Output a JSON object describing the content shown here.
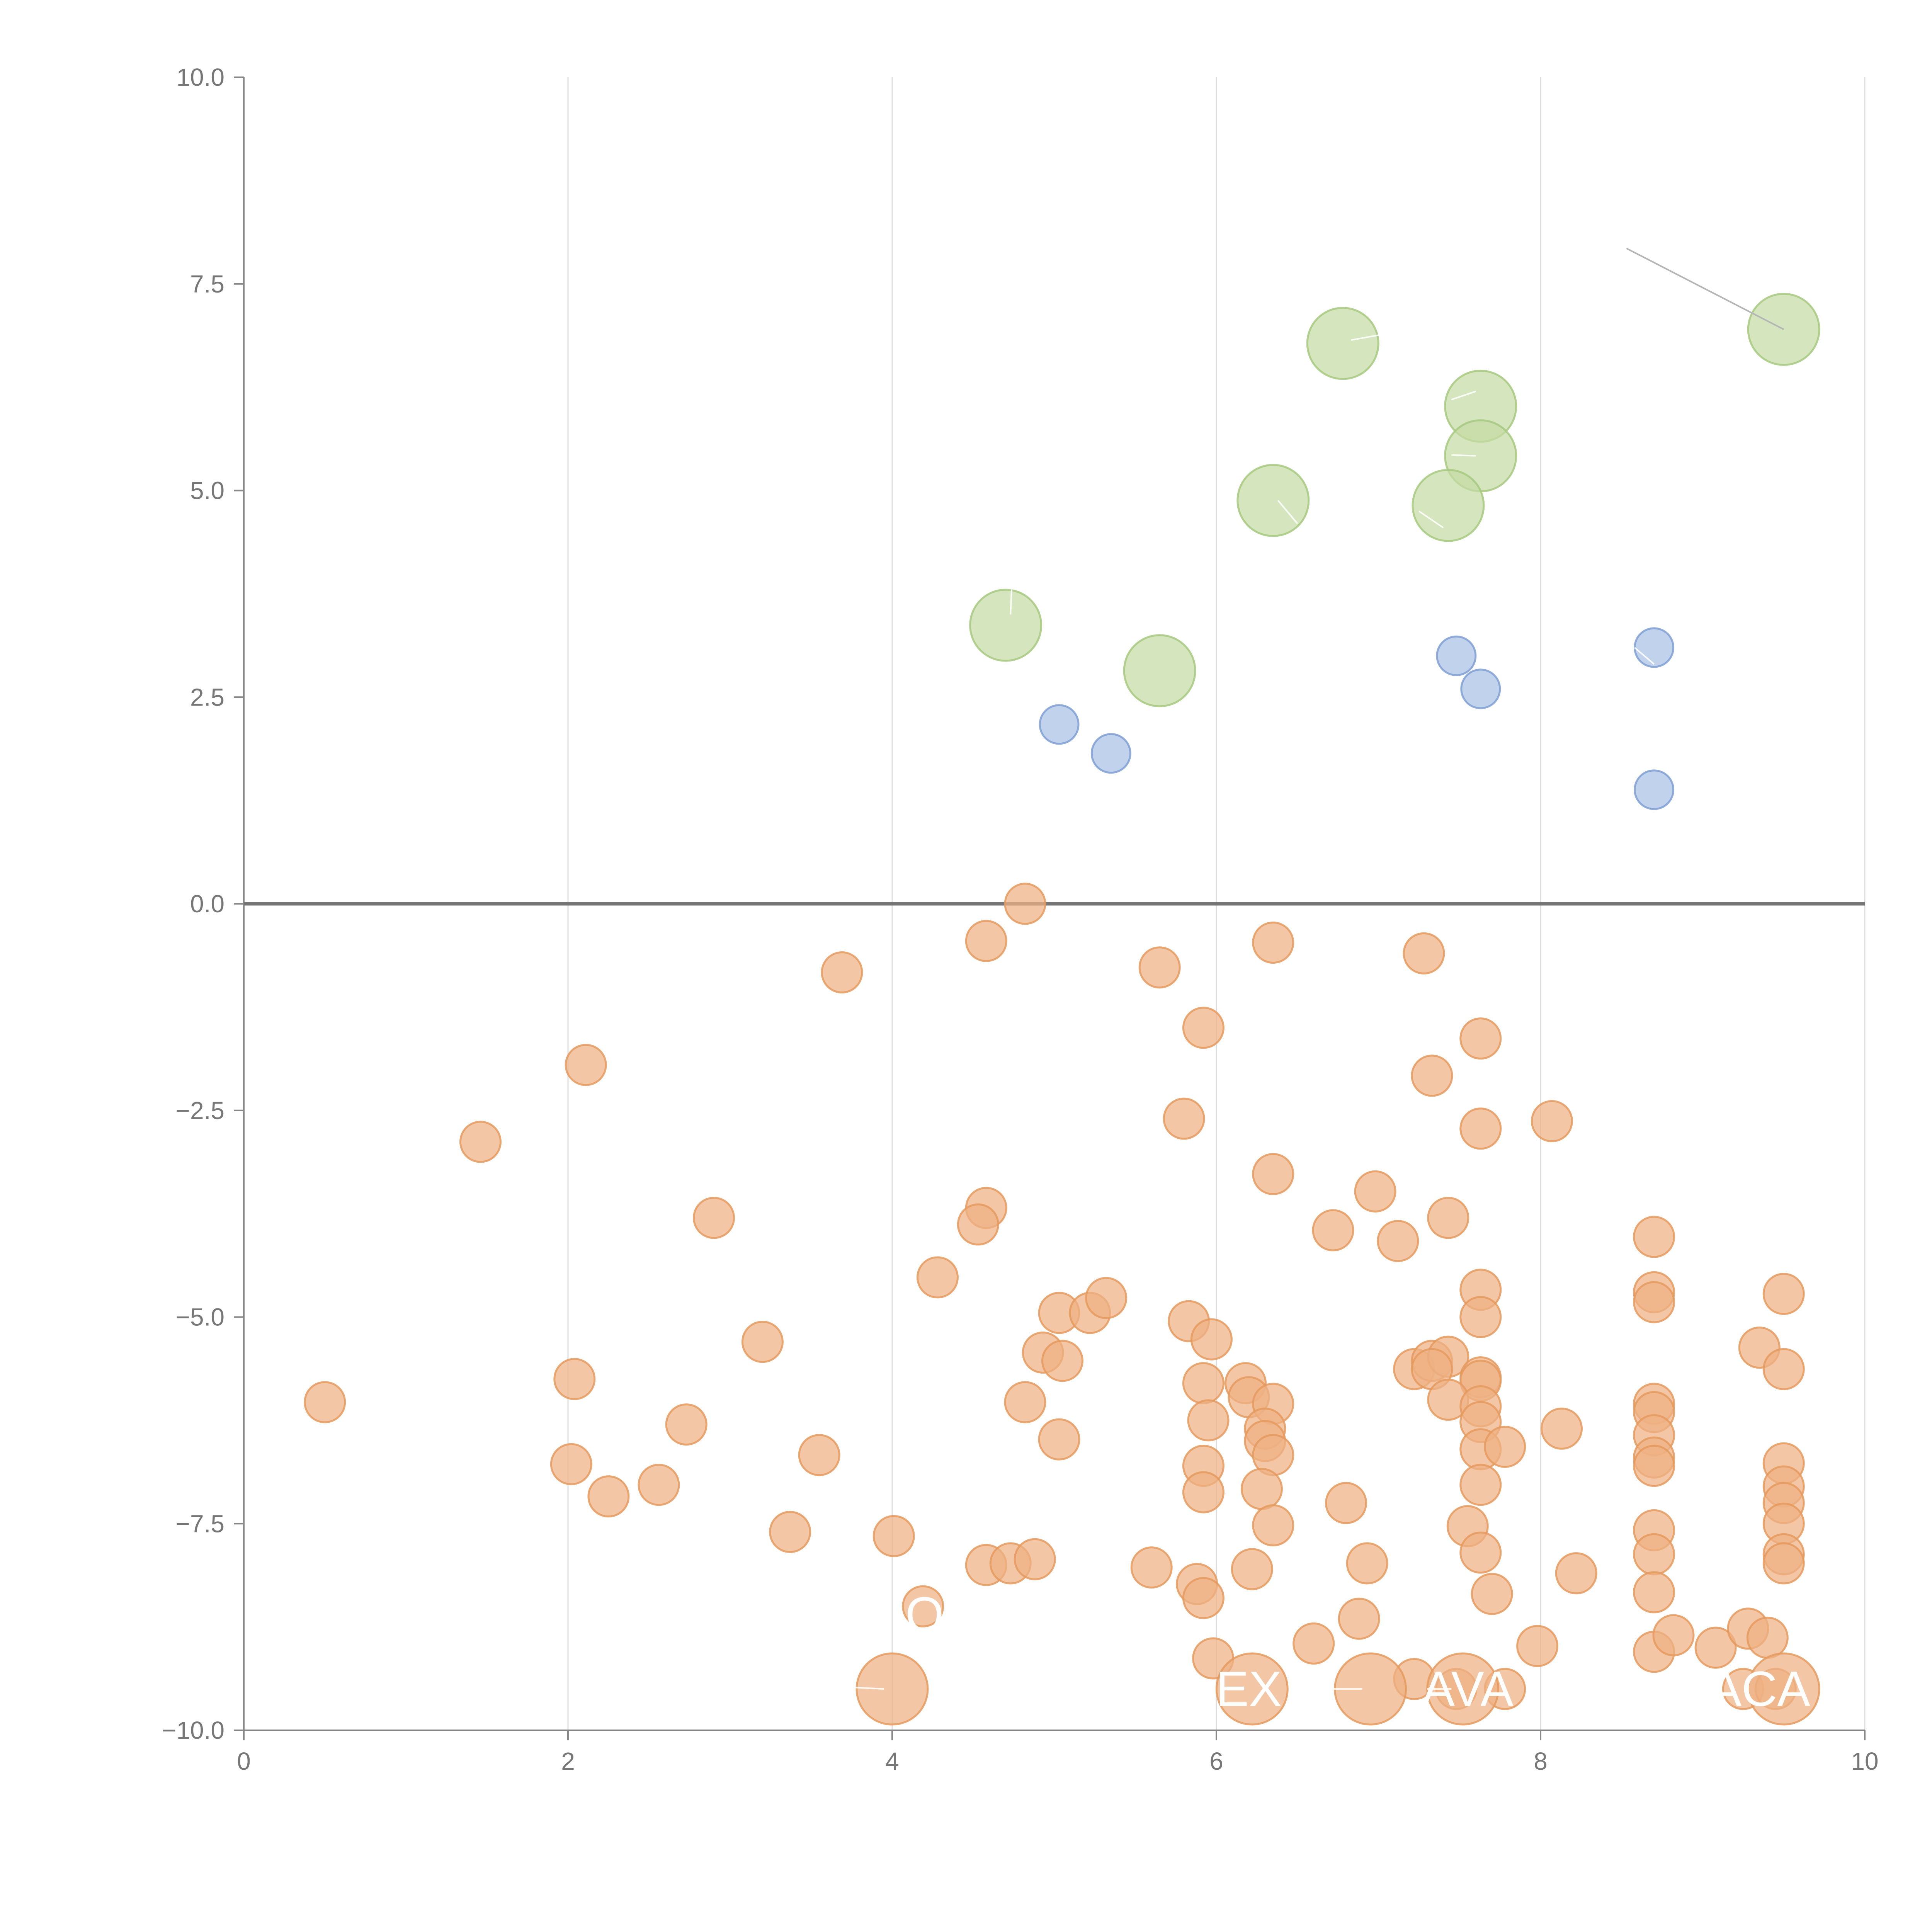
{
  "chart_data": {
    "type": "scatter",
    "title": "",
    "xlabel": "",
    "ylabel": "",
    "xlim": [
      0,
      10
    ],
    "ylim": [
      -10,
      10
    ],
    "x_ticks": [
      {
        "value": 0,
        "label": "0"
      },
      {
        "value": 2,
        "label": "2"
      },
      {
        "value": 4,
        "label": "4"
      },
      {
        "value": 6,
        "label": "6"
      },
      {
        "value": 8,
        "label": "8"
      },
      {
        "value": 10,
        "label": "10"
      }
    ],
    "y_ticks": [
      {
        "value": 10,
        "label": "10.0"
      },
      {
        "value": 7.5,
        "label": "7.5"
      },
      {
        "value": 5,
        "label": "5.0"
      },
      {
        "value": 2.5,
        "label": "2.5"
      },
      {
        "value": 0,
        "label": "0.0"
      },
      {
        "value": -2.5,
        "label": "−2.5"
      },
      {
        "value": -5,
        "label": "−5.0"
      },
      {
        "value": -7.5,
        "label": "−7.5"
      },
      {
        "value": -10,
        "label": "−10.0"
      }
    ],
    "grid": "vertical",
    "reference_line_y": 0,
    "colors": {
      "green_fill": "#c5dba4",
      "green_stroke": "#a6c97f",
      "blue_fill": "#a9c0e4",
      "blue_stroke": "#7f9fd2",
      "orange_fill": "#eeb283",
      "orange_stroke": "#e49a5e",
      "leader_gray": "#b5b5b5",
      "leader_light": "#ffffff"
    },
    "series": [
      {
        "name": "large-green",
        "color": "green",
        "size": "large",
        "points": [
          [
            6.78,
            6.78
          ],
          [
            7.63,
            6.02
          ],
          [
            7.63,
            5.42
          ],
          [
            6.35,
            4.88
          ],
          [
            7.43,
            4.82
          ],
          [
            4.7,
            3.37
          ],
          [
            5.65,
            2.82
          ],
          [
            9.5,
            6.95
          ]
        ]
      },
      {
        "name": "medium-blue",
        "color": "blue",
        "size": "small",
        "points": [
          [
            5.03,
            2.17
          ],
          [
            5.35,
            1.82
          ],
          [
            7.48,
            3.0
          ],
          [
            7.63,
            2.6
          ],
          [
            8.7,
            3.1
          ],
          [
            8.7,
            1.38
          ]
        ]
      },
      {
        "name": "small-orange",
        "color": "orange",
        "size": "medium",
        "points": [
          [
            4.82,
            0.0
          ],
          [
            4.58,
            -0.45
          ],
          [
            3.69,
            -0.83
          ],
          [
            5.65,
            -0.77
          ],
          [
            6.35,
            -0.47
          ],
          [
            7.28,
            -0.6
          ],
          [
            5.92,
            -1.5
          ],
          [
            7.63,
            -1.63
          ],
          [
            2.11,
            -1.95
          ],
          [
            1.46,
            -2.88
          ],
          [
            5.8,
            -2.6
          ],
          [
            7.33,
            -2.08
          ],
          [
            7.63,
            -2.72
          ],
          [
            8.07,
            -2.63
          ],
          [
            6.35,
            -3.27
          ],
          [
            6.98,
            -3.48
          ],
          [
            2.9,
            -3.8
          ],
          [
            4.58,
            -3.68
          ],
          [
            4.53,
            -3.88
          ],
          [
            6.72,
            -3.95
          ],
          [
            7.12,
            -4.08
          ],
          [
            7.43,
            -3.8
          ],
          [
            8.7,
            -4.03
          ],
          [
            4.28,
            -4.52
          ],
          [
            5.03,
            -4.95
          ],
          [
            5.22,
            -4.95
          ],
          [
            5.32,
            -4.77
          ],
          [
            5.83,
            -5.05
          ],
          [
            5.97,
            -5.27
          ],
          [
            7.63,
            -4.67
          ],
          [
            7.63,
            -5.0
          ],
          [
            8.7,
            -4.7
          ],
          [
            8.7,
            -4.82
          ],
          [
            9.5,
            -4.72
          ],
          [
            3.2,
            -5.3
          ],
          [
            4.93,
            -5.43
          ],
          [
            5.05,
            -5.53
          ],
          [
            7.22,
            -5.63
          ],
          [
            7.33,
            -5.53
          ],
          [
            7.43,
            -5.48
          ],
          [
            7.33,
            -5.63
          ],
          [
            7.63,
            -5.73
          ],
          [
            7.63,
            -5.77
          ],
          [
            9.35,
            -5.37
          ],
          [
            9.5,
            -5.63
          ],
          [
            0.5,
            -6.03
          ],
          [
            2.04,
            -5.75
          ],
          [
            4.82,
            -6.03
          ],
          [
            5.92,
            -5.8
          ],
          [
            6.18,
            -5.8
          ],
          [
            6.2,
            -5.97
          ],
          [
            6.35,
            -6.05
          ],
          [
            5.95,
            -6.25
          ],
          [
            6.3,
            -6.35
          ],
          [
            6.3,
            -6.5
          ],
          [
            6.35,
            -6.67
          ],
          [
            7.43,
            -6.0
          ],
          [
            7.63,
            -6.08
          ],
          [
            7.63,
            -6.27
          ],
          [
            7.63,
            -6.6
          ],
          [
            7.78,
            -6.57
          ],
          [
            8.13,
            -6.35
          ],
          [
            8.7,
            -6.05
          ],
          [
            8.7,
            -6.15
          ],
          [
            8.7,
            -6.43
          ],
          [
            2.73,
            -6.3
          ],
          [
            3.55,
            -6.67
          ],
          [
            5.03,
            -6.48
          ],
          [
            2.02,
            -6.78
          ],
          [
            2.25,
            -7.17
          ],
          [
            2.56,
            -7.03
          ],
          [
            5.92,
            -6.8
          ],
          [
            5.92,
            -7.12
          ],
          [
            6.28,
            -7.08
          ],
          [
            6.35,
            -7.52
          ],
          [
            6.8,
            -7.25
          ],
          [
            7.63,
            -7.03
          ],
          [
            8.7,
            -6.7
          ],
          [
            8.7,
            -6.8
          ],
          [
            9.5,
            -6.77
          ],
          [
            9.5,
            -7.05
          ],
          [
            9.5,
            -7.25
          ],
          [
            9.5,
            -7.5
          ],
          [
            3.37,
            -7.6
          ],
          [
            4.01,
            -7.65
          ],
          [
            4.58,
            -8.0
          ],
          [
            4.73,
            -7.98
          ],
          [
            4.88,
            -7.93
          ],
          [
            5.6,
            -8.03
          ],
          [
            5.88,
            -8.23
          ],
          [
            5.92,
            -8.4
          ],
          [
            6.22,
            -8.05
          ],
          [
            6.93,
            -7.98
          ],
          [
            7.55,
            -7.53
          ],
          [
            7.63,
            -7.85
          ],
          [
            7.7,
            -8.35
          ],
          [
            8.22,
            -8.1
          ],
          [
            8.7,
            -7.58
          ],
          [
            8.7,
            -7.87
          ],
          [
            8.7,
            -8.33
          ],
          [
            9.5,
            -7.87
          ],
          [
            9.5,
            -7.98
          ],
          [
            4.19,
            -8.5
          ],
          [
            5.98,
            -9.13
          ],
          [
            6.6,
            -8.95
          ],
          [
            6.88,
            -8.65
          ],
          [
            7.22,
            -9.38
          ],
          [
            7.48,
            -9.5
          ],
          [
            7.78,
            -9.5
          ],
          [
            7.98,
            -8.98
          ],
          [
            8.7,
            -9.05
          ],
          [
            8.82,
            -8.85
          ],
          [
            9.08,
            -9.0
          ],
          [
            9.28,
            -8.77
          ],
          [
            9.4,
            -8.88
          ],
          [
            9.25,
            -9.5
          ],
          [
            9.45,
            -9.5
          ]
        ]
      },
      {
        "name": "large-orange",
        "color": "orange",
        "size": "large",
        "points": [
          [
            4.0,
            -9.5
          ],
          [
            6.22,
            -9.5
          ],
          [
            6.95,
            -9.5
          ],
          [
            7.52,
            -9.5
          ],
          [
            9.5,
            -9.5
          ]
        ]
      }
    ],
    "annotations": [
      {
        "text": "O",
        "x": 4.2,
        "y": -8.6
      },
      {
        "text": "EX",
        "x": 6.2,
        "y": -9.5
      },
      {
        "text": "AVA",
        "x": 7.55,
        "y": -9.5
      },
      {
        "text": "ACA",
        "x": 9.35,
        "y": -9.5
      }
    ],
    "leaders": [
      {
        "from": [
          8.53,
          7.93
        ],
        "to": [
          9.5,
          6.95
        ],
        "color": "gray"
      },
      {
        "from": [
          6.83,
          6.82
        ],
        "to": [
          7.0,
          6.88
        ],
        "color": "light"
      },
      {
        "from": [
          7.45,
          6.1
        ],
        "to": [
          7.6,
          6.2
        ],
        "color": "light"
      },
      {
        "from": [
          7.45,
          5.43
        ],
        "to": [
          7.6,
          5.42
        ],
        "color": "light"
      },
      {
        "from": [
          6.38,
          4.88
        ],
        "to": [
          6.5,
          4.6
        ],
        "color": "light"
      },
      {
        "from": [
          7.25,
          4.75
        ],
        "to": [
          7.4,
          4.55
        ],
        "color": "light"
      },
      {
        "from": [
          4.73,
          3.5
        ],
        "to": [
          4.74,
          3.95
        ],
        "color": "light"
      },
      {
        "from": [
          8.58,
          3.1
        ],
        "to": [
          8.7,
          2.9
        ],
        "color": "light"
      },
      {
        "from": [
          3.75,
          -9.48
        ],
        "to": [
          3.95,
          -9.5
        ],
        "color": "light"
      },
      {
        "from": [
          6.6,
          -9.5
        ],
        "to": [
          6.9,
          -9.5
        ],
        "color": "light"
      },
      {
        "from": [
          7.3,
          -9.5
        ],
        "to": [
          7.45,
          -9.5
        ],
        "color": "light"
      },
      {
        "from": [
          8.05,
          -9.5
        ],
        "to": [
          8.25,
          -9.5
        ],
        "color": "light"
      }
    ]
  }
}
